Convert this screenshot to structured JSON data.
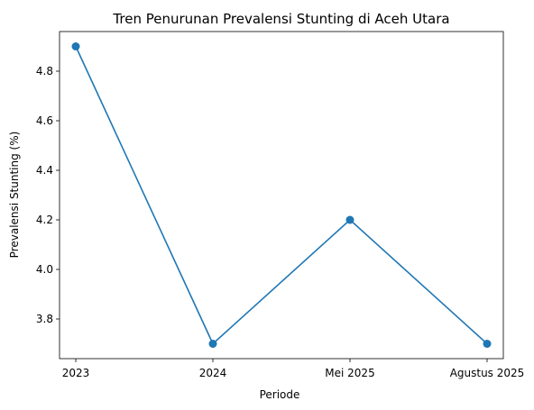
{
  "chart_data": {
    "type": "line",
    "title": "Tren Penurunan Prevalensi Stunting di Aceh Utara",
    "xlabel": "Periode",
    "ylabel": "Prevalensi Stunting (%)",
    "categories": [
      "2023",
      "2024",
      "Mei 2025",
      "Agustus 2025"
    ],
    "series": [
      {
        "values": [
          4.9,
          3.7,
          4.2,
          3.7
        ],
        "color": "#1f77b4"
      }
    ],
    "ylim": [
      3.64,
      4.96
    ],
    "yticks": [
      "3.8",
      "4.0",
      "4.2",
      "4.4",
      "4.6",
      "4.8"
    ],
    "grid": false,
    "legend": "none"
  }
}
